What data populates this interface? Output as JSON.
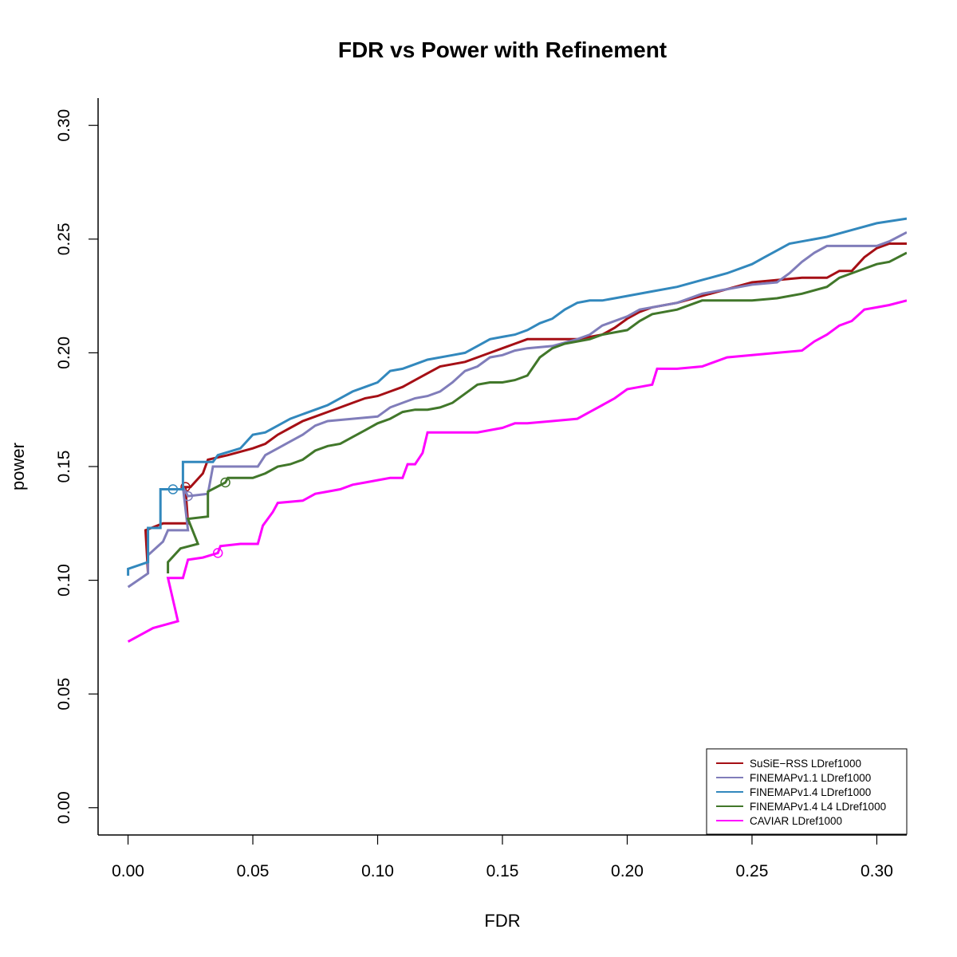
{
  "chart_data": {
    "type": "line",
    "title": "FDR vs Power with Refinement",
    "xlabel": "FDR",
    "ylabel": "power",
    "xlim": [
      -0.012,
      0.312
    ],
    "ylim": [
      -0.012,
      0.312
    ],
    "xticks": [
      0.0,
      0.05,
      0.1,
      0.15,
      0.2,
      0.25,
      0.3
    ],
    "xtick_labels": [
      "0.00",
      "0.05",
      "0.10",
      "0.15",
      "0.20",
      "0.25",
      "0.30"
    ],
    "yticks": [
      0.0,
      0.05,
      0.1,
      0.15,
      0.2,
      0.25,
      0.3
    ],
    "ytick_labels": [
      "0.00",
      "0.05",
      "0.10",
      "0.15",
      "0.20",
      "0.25",
      "0.30"
    ],
    "grid": false,
    "legend_position": "bottom-right",
    "series": [
      {
        "name": "SuSiE−RSS LDref1000",
        "color": "#a50f15",
        "marker": [
          0.023,
          0.141
        ],
        "points": [
          [
            0.008,
            0.103
          ],
          [
            0.007,
            0.122
          ],
          [
            0.014,
            0.125
          ],
          [
            0.024,
            0.125
          ],
          [
            0.023,
            0.141
          ],
          [
            0.025,
            0.141
          ],
          [
            0.03,
            0.147
          ],
          [
            0.032,
            0.153
          ],
          [
            0.04,
            0.155
          ],
          [
            0.05,
            0.158
          ],
          [
            0.055,
            0.16
          ],
          [
            0.06,
            0.164
          ],
          [
            0.065,
            0.167
          ],
          [
            0.07,
            0.17
          ],
          [
            0.075,
            0.172
          ],
          [
            0.08,
            0.174
          ],
          [
            0.085,
            0.176
          ],
          [
            0.09,
            0.178
          ],
          [
            0.095,
            0.18
          ],
          [
            0.1,
            0.181
          ],
          [
            0.105,
            0.183
          ],
          [
            0.11,
            0.185
          ],
          [
            0.115,
            0.188
          ],
          [
            0.12,
            0.191
          ],
          [
            0.125,
            0.194
          ],
          [
            0.13,
            0.195
          ],
          [
            0.135,
            0.196
          ],
          [
            0.14,
            0.198
          ],
          [
            0.145,
            0.2
          ],
          [
            0.15,
            0.202
          ],
          [
            0.155,
            0.204
          ],
          [
            0.16,
            0.206
          ],
          [
            0.17,
            0.206
          ],
          [
            0.18,
            0.206
          ],
          [
            0.19,
            0.208
          ],
          [
            0.195,
            0.211
          ],
          [
            0.2,
            0.215
          ],
          [
            0.205,
            0.218
          ],
          [
            0.21,
            0.22
          ],
          [
            0.22,
            0.222
          ],
          [
            0.23,
            0.225
          ],
          [
            0.24,
            0.228
          ],
          [
            0.25,
            0.231
          ],
          [
            0.26,
            0.232
          ],
          [
            0.27,
            0.233
          ],
          [
            0.28,
            0.233
          ],
          [
            0.285,
            0.236
          ],
          [
            0.29,
            0.236
          ],
          [
            0.295,
            0.242
          ],
          [
            0.3,
            0.246
          ],
          [
            0.305,
            0.248
          ],
          [
            0.312,
            0.248
          ]
        ]
      },
      {
        "name": "FINEMAPv1.1 LDref1000",
        "color": "#807dba",
        "marker": [
          0.024,
          0.137
        ],
        "points": [
          [
            0.0,
            0.097
          ],
          [
            0.008,
            0.103
          ],
          [
            0.008,
            0.111
          ],
          [
            0.014,
            0.117
          ],
          [
            0.016,
            0.122
          ],
          [
            0.024,
            0.122
          ],
          [
            0.022,
            0.141
          ],
          [
            0.024,
            0.137
          ],
          [
            0.032,
            0.138
          ],
          [
            0.034,
            0.15
          ],
          [
            0.052,
            0.15
          ],
          [
            0.055,
            0.155
          ],
          [
            0.06,
            0.158
          ],
          [
            0.065,
            0.161
          ],
          [
            0.07,
            0.164
          ],
          [
            0.075,
            0.168
          ],
          [
            0.08,
            0.17
          ],
          [
            0.09,
            0.171
          ],
          [
            0.1,
            0.172
          ],
          [
            0.105,
            0.176
          ],
          [
            0.11,
            0.178
          ],
          [
            0.115,
            0.18
          ],
          [
            0.12,
            0.181
          ],
          [
            0.125,
            0.183
          ],
          [
            0.13,
            0.187
          ],
          [
            0.135,
            0.192
          ],
          [
            0.14,
            0.194
          ],
          [
            0.145,
            0.198
          ],
          [
            0.15,
            0.199
          ],
          [
            0.155,
            0.201
          ],
          [
            0.16,
            0.202
          ],
          [
            0.17,
            0.203
          ],
          [
            0.18,
            0.206
          ],
          [
            0.185,
            0.208
          ],
          [
            0.19,
            0.212
          ],
          [
            0.2,
            0.216
          ],
          [
            0.205,
            0.219
          ],
          [
            0.21,
            0.22
          ],
          [
            0.22,
            0.222
          ],
          [
            0.23,
            0.226
          ],
          [
            0.24,
            0.228
          ],
          [
            0.25,
            0.23
          ],
          [
            0.26,
            0.231
          ],
          [
            0.265,
            0.235
          ],
          [
            0.27,
            0.24
          ],
          [
            0.275,
            0.244
          ],
          [
            0.28,
            0.247
          ],
          [
            0.29,
            0.247
          ],
          [
            0.3,
            0.247
          ],
          [
            0.305,
            0.249
          ],
          [
            0.312,
            0.253
          ]
        ]
      },
      {
        "name": "FINEMAPv1.4 LDref1000",
        "color": "#3288bd",
        "marker": [
          0.018,
          0.14
        ],
        "points": [
          [
            0.0,
            0.102
          ],
          [
            0.0,
            0.105
          ],
          [
            0.008,
            0.108
          ],
          [
            0.008,
            0.123
          ],
          [
            0.013,
            0.123
          ],
          [
            0.013,
            0.14
          ],
          [
            0.022,
            0.14
          ],
          [
            0.022,
            0.152
          ],
          [
            0.034,
            0.152
          ],
          [
            0.036,
            0.155
          ],
          [
            0.045,
            0.158
          ],
          [
            0.05,
            0.164
          ],
          [
            0.055,
            0.165
          ],
          [
            0.06,
            0.168
          ],
          [
            0.065,
            0.171
          ],
          [
            0.07,
            0.173
          ],
          [
            0.075,
            0.175
          ],
          [
            0.08,
            0.177
          ],
          [
            0.085,
            0.18
          ],
          [
            0.09,
            0.183
          ],
          [
            0.095,
            0.185
          ],
          [
            0.1,
            0.187
          ],
          [
            0.105,
            0.192
          ],
          [
            0.11,
            0.193
          ],
          [
            0.115,
            0.195
          ],
          [
            0.12,
            0.197
          ],
          [
            0.13,
            0.199
          ],
          [
            0.135,
            0.2
          ],
          [
            0.14,
            0.203
          ],
          [
            0.145,
            0.206
          ],
          [
            0.15,
            0.207
          ],
          [
            0.155,
            0.208
          ],
          [
            0.16,
            0.21
          ],
          [
            0.165,
            0.213
          ],
          [
            0.17,
            0.215
          ],
          [
            0.175,
            0.219
          ],
          [
            0.18,
            0.222
          ],
          [
            0.185,
            0.223
          ],
          [
            0.19,
            0.223
          ],
          [
            0.195,
            0.224
          ],
          [
            0.2,
            0.225
          ],
          [
            0.21,
            0.227
          ],
          [
            0.22,
            0.229
          ],
          [
            0.23,
            0.232
          ],
          [
            0.24,
            0.235
          ],
          [
            0.25,
            0.239
          ],
          [
            0.255,
            0.242
          ],
          [
            0.26,
            0.245
          ],
          [
            0.265,
            0.248
          ],
          [
            0.27,
            0.249
          ],
          [
            0.28,
            0.251
          ],
          [
            0.29,
            0.254
          ],
          [
            0.3,
            0.257
          ],
          [
            0.312,
            0.259
          ]
        ]
      },
      {
        "name": "FINEMAPv1.4 L4 LDref1000",
        "color": "#41772a",
        "marker": [
          0.039,
          0.143
        ],
        "points": [
          [
            0.016,
            0.103
          ],
          [
            0.016,
            0.108
          ],
          [
            0.021,
            0.114
          ],
          [
            0.028,
            0.116
          ],
          [
            0.024,
            0.127
          ],
          [
            0.032,
            0.128
          ],
          [
            0.032,
            0.139
          ],
          [
            0.039,
            0.143
          ],
          [
            0.04,
            0.145
          ],
          [
            0.05,
            0.145
          ],
          [
            0.055,
            0.147
          ],
          [
            0.06,
            0.15
          ],
          [
            0.065,
            0.151
          ],
          [
            0.07,
            0.153
          ],
          [
            0.075,
            0.157
          ],
          [
            0.08,
            0.159
          ],
          [
            0.085,
            0.16
          ],
          [
            0.09,
            0.163
          ],
          [
            0.095,
            0.166
          ],
          [
            0.1,
            0.169
          ],
          [
            0.105,
            0.171
          ],
          [
            0.11,
            0.174
          ],
          [
            0.115,
            0.175
          ],
          [
            0.12,
            0.175
          ],
          [
            0.125,
            0.176
          ],
          [
            0.13,
            0.178
          ],
          [
            0.135,
            0.182
          ],
          [
            0.14,
            0.186
          ],
          [
            0.145,
            0.187
          ],
          [
            0.15,
            0.187
          ],
          [
            0.155,
            0.188
          ],
          [
            0.16,
            0.19
          ],
          [
            0.165,
            0.198
          ],
          [
            0.17,
            0.202
          ],
          [
            0.175,
            0.204
          ],
          [
            0.18,
            0.205
          ],
          [
            0.185,
            0.206
          ],
          [
            0.19,
            0.208
          ],
          [
            0.2,
            0.21
          ],
          [
            0.205,
            0.214
          ],
          [
            0.21,
            0.217
          ],
          [
            0.22,
            0.219
          ],
          [
            0.23,
            0.223
          ],
          [
            0.25,
            0.223
          ],
          [
            0.26,
            0.224
          ],
          [
            0.27,
            0.226
          ],
          [
            0.28,
            0.229
          ],
          [
            0.285,
            0.233
          ],
          [
            0.29,
            0.235
          ],
          [
            0.295,
            0.237
          ],
          [
            0.3,
            0.239
          ],
          [
            0.305,
            0.24
          ],
          [
            0.312,
            0.244
          ]
        ]
      },
      {
        "name": "CAVIAR LDref1000",
        "color": "#ff00ff",
        "marker": [
          0.036,
          0.112
        ],
        "points": [
          [
            0.0,
            0.073
          ],
          [
            0.01,
            0.079
          ],
          [
            0.02,
            0.082
          ],
          [
            0.016,
            0.101
          ],
          [
            0.022,
            0.101
          ],
          [
            0.024,
            0.109
          ],
          [
            0.03,
            0.11
          ],
          [
            0.036,
            0.112
          ],
          [
            0.037,
            0.115
          ],
          [
            0.045,
            0.116
          ],
          [
            0.052,
            0.116
          ],
          [
            0.054,
            0.124
          ],
          [
            0.058,
            0.13
          ],
          [
            0.06,
            0.134
          ],
          [
            0.07,
            0.135
          ],
          [
            0.075,
            0.138
          ],
          [
            0.08,
            0.139
          ],
          [
            0.085,
            0.14
          ],
          [
            0.09,
            0.142
          ],
          [
            0.095,
            0.143
          ],
          [
            0.1,
            0.144
          ],
          [
            0.105,
            0.145
          ],
          [
            0.11,
            0.145
          ],
          [
            0.112,
            0.151
          ],
          [
            0.115,
            0.151
          ],
          [
            0.118,
            0.156
          ],
          [
            0.12,
            0.165
          ],
          [
            0.125,
            0.165
          ],
          [
            0.13,
            0.165
          ],
          [
            0.14,
            0.165
          ],
          [
            0.15,
            0.167
          ],
          [
            0.155,
            0.169
          ],
          [
            0.16,
            0.169
          ],
          [
            0.17,
            0.17
          ],
          [
            0.18,
            0.171
          ],
          [
            0.185,
            0.174
          ],
          [
            0.19,
            0.177
          ],
          [
            0.195,
            0.18
          ],
          [
            0.2,
            0.184
          ],
          [
            0.205,
            0.185
          ],
          [
            0.21,
            0.186
          ],
          [
            0.212,
            0.193
          ],
          [
            0.22,
            0.193
          ],
          [
            0.23,
            0.194
          ],
          [
            0.24,
            0.198
          ],
          [
            0.25,
            0.199
          ],
          [
            0.26,
            0.2
          ],
          [
            0.27,
            0.201
          ],
          [
            0.275,
            0.205
          ],
          [
            0.28,
            0.208
          ],
          [
            0.285,
            0.212
          ],
          [
            0.29,
            0.214
          ],
          [
            0.295,
            0.219
          ],
          [
            0.3,
            0.22
          ],
          [
            0.305,
            0.221
          ],
          [
            0.312,
            0.223
          ]
        ]
      }
    ]
  }
}
